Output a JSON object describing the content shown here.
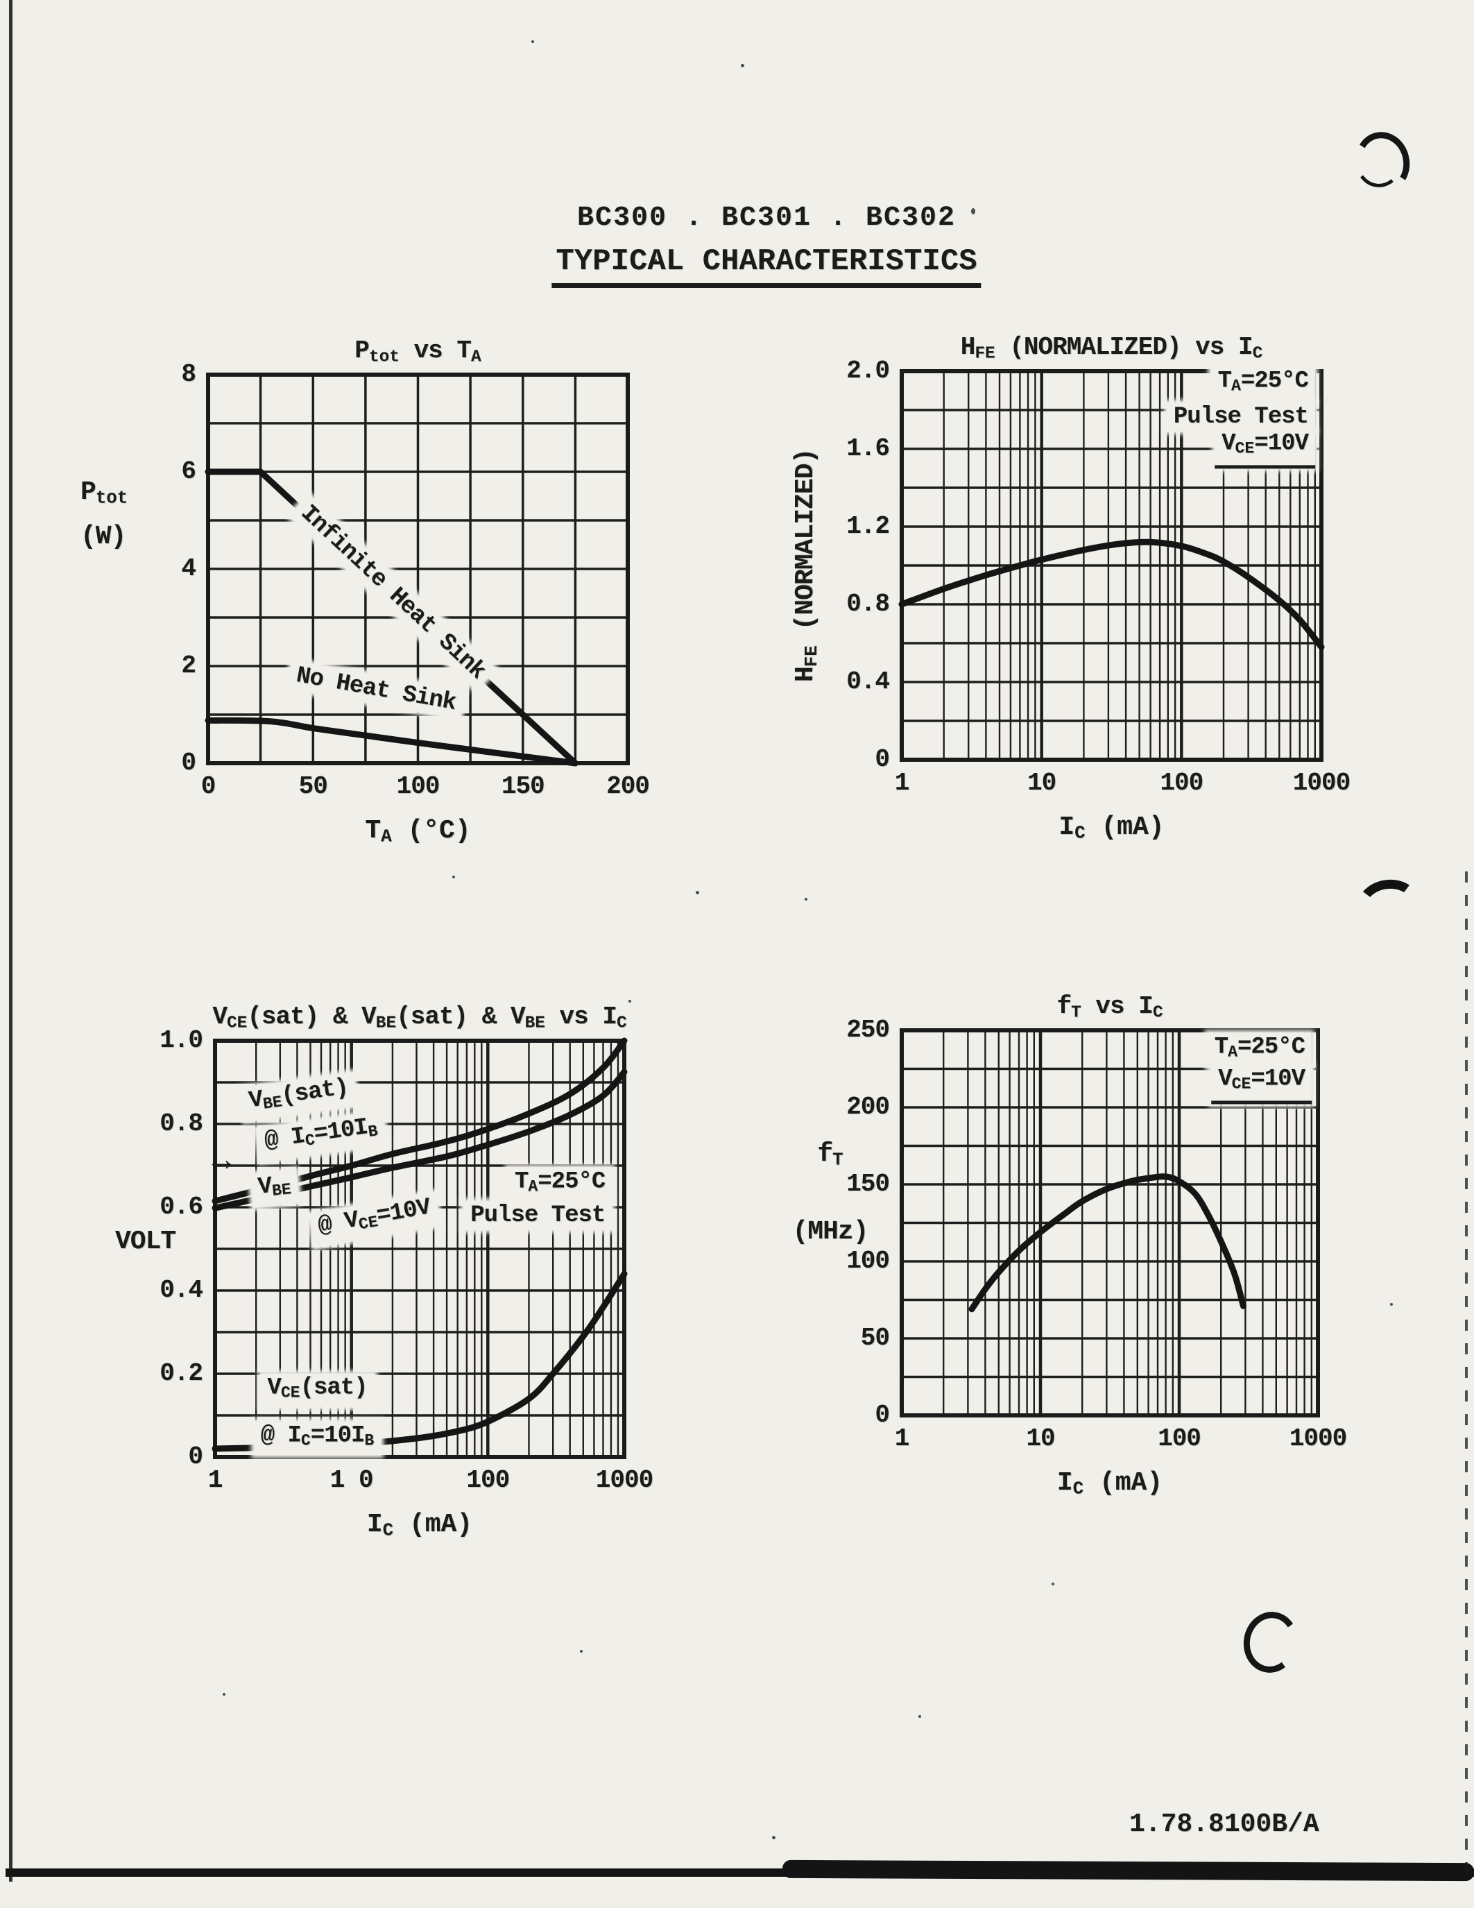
{
  "page": {
    "header_title": "BC300 . BC301 . BC302",
    "header_subtitle": "TYPICAL CHARACTERISTICS",
    "footer_code": "1.78.8100B/A",
    "ink": "#1b1b1b",
    "paper": "#f0efe9"
  },
  "chart_data": [
    {
      "id": "ptot-vs-ta",
      "type": "line",
      "title": "P_{tot} vs T_{A}",
      "xlabel": "T_{A} (°C)",
      "ylabel_lines": [
        "P_{tot}",
        "(W)"
      ],
      "x": {
        "scale": "linear",
        "min": 0,
        "max": 200,
        "grid_step": 25,
        "ticks": [
          {
            "v": 0,
            "t": "0"
          },
          {
            "v": 50,
            "t": "50"
          },
          {
            "v": 100,
            "t": "100"
          },
          {
            "v": 150,
            "t": "150"
          },
          {
            "v": 200,
            "t": "200"
          }
        ]
      },
      "y": {
        "scale": "linear",
        "min": 0,
        "max": 8,
        "grid_step": 1,
        "ticks": [
          {
            "v": 8,
            "t": "8"
          },
          {
            "v": 6,
            "t": "6"
          },
          {
            "v": 4,
            "t": "4"
          },
          {
            "v": 2,
            "t": "2"
          },
          {
            "v": 0,
            "t": "0"
          }
        ]
      },
      "series": [
        {
          "name": "Infinite Heat Sink",
          "sharp": true,
          "points": [
            [
              0,
              6
            ],
            [
              25,
              6
            ],
            [
              175,
              0
            ]
          ]
        },
        {
          "name": "No Heat Sink",
          "points": [
            [
              0,
              0.88
            ],
            [
              30,
              0.86
            ],
            [
              50,
              0.72
            ],
            [
              75,
              0.57
            ],
            [
              100,
              0.42
            ],
            [
              125,
              0.28
            ],
            [
              150,
              0.14
            ],
            [
              175,
              0
            ]
          ]
        }
      ],
      "annotations": [
        {
          "text": "Infinite Heat Sink",
          "fx": 0.44,
          "fy": 0.56,
          "rot": 43,
          "bg": true
        },
        {
          "text": "No Heat Sink",
          "fx": 0.4,
          "fy": 0.81,
          "rot": 10,
          "bg": true
        }
      ]
    },
    {
      "id": "hfe-vs-ic",
      "type": "line",
      "title": "H_{FE} (NORMALIZED) vs I_{C}",
      "xlabel": "I_{C} (mA)",
      "ylabel_rotated": "H_{FE} (NORMALIZED)",
      "x": {
        "scale": "log",
        "min": 1,
        "max": 1000,
        "ticks": [
          {
            "v": 1,
            "t": "1"
          },
          {
            "v": 10,
            "t": "10"
          },
          {
            "v": 100,
            "t": "100"
          },
          {
            "v": 1000,
            "t": "1000"
          }
        ]
      },
      "y": {
        "scale": "linear",
        "min": 0,
        "max": 2.0,
        "grid_step": 0.2,
        "ticks": [
          {
            "v": 2.0,
            "t": "2.0"
          },
          {
            "v": 1.6,
            "t": "1.6"
          },
          {
            "v": 1.2,
            "t": "1.2"
          },
          {
            "v": 0.8,
            "t": "0.8"
          },
          {
            "v": 0.4,
            "t": "0.4"
          },
          {
            "v": 0,
            "t": "0"
          }
        ]
      },
      "series": [
        {
          "name": "HFE normalized",
          "points": [
            [
              1,
              0.8
            ],
            [
              2,
              0.88
            ],
            [
              4,
              0.95
            ],
            [
              7,
              1.0
            ],
            [
              10,
              1.03
            ],
            [
              20,
              1.08
            ],
            [
              35,
              1.11
            ],
            [
              60,
              1.12
            ],
            [
              100,
              1.1
            ],
            [
              150,
              1.06
            ],
            [
              200,
              1.02
            ],
            [
              300,
              0.94
            ],
            [
              500,
              0.82
            ],
            [
              700,
              0.72
            ],
            [
              1000,
              0.58
            ]
          ]
        }
      ],
      "annotations": [
        {
          "text": "T_{A}=25°C",
          "fx": 0.985,
          "fy": 0.033,
          "align": "right",
          "bg": true
        },
        {
          "text": "Pulse Test",
          "fx": 0.985,
          "fy": 0.118,
          "align": "right",
          "bg": true
        },
        {
          "text": "V_{CE}=10V",
          "fx": 0.985,
          "fy": 0.2,
          "align": "right",
          "bg": true,
          "underline": true
        }
      ]
    },
    {
      "id": "vsat-vbe-vs-ic",
      "type": "line",
      "title": "V_{CE}(sat) & V_{BE}(sat) & V_{BE} vs I_{C}",
      "xlabel": "I_{C} (mA)",
      "ylabel_lines": [
        "VOLT"
      ],
      "x": {
        "scale": "log",
        "min": 1,
        "max": 1000,
        "ticks": [
          {
            "v": 1,
            "t": "1"
          },
          {
            "v": 10,
            "t": "1 0"
          },
          {
            "v": 100,
            "t": "100"
          },
          {
            "v": 1000,
            "t": "1000"
          }
        ]
      },
      "y": {
        "scale": "linear",
        "min": 0,
        "max": 1.0,
        "grid_step": 0.1,
        "ticks": [
          {
            "v": 1.0,
            "t": "1.0"
          },
          {
            "v": 0.8,
            "t": "0.8"
          },
          {
            "v": 0.6,
            "t": "0.6"
          },
          {
            "v": 0.4,
            "t": "0.4"
          },
          {
            "v": 0.2,
            "t": "0.2"
          },
          {
            "v": 0,
            "t": "0"
          }
        ]
      },
      "series": [
        {
          "name": "VBE(sat) @ IC=10IB",
          "points": [
            [
              1,
              0.615
            ],
            [
              2,
              0.64
            ],
            [
              5,
              0.675
            ],
            [
              10,
              0.7
            ],
            [
              20,
              0.728
            ],
            [
              50,
              0.758
            ],
            [
              100,
              0.788
            ],
            [
              200,
              0.825
            ],
            [
              400,
              0.872
            ],
            [
              700,
              0.935
            ],
            [
              1000,
              1.0
            ]
          ]
        },
        {
          "name": "VBE @ VCE=10V",
          "points": [
            [
              1,
              0.598
            ],
            [
              2,
              0.62
            ],
            [
              5,
              0.65
            ],
            [
              10,
              0.672
            ],
            [
              20,
              0.695
            ],
            [
              50,
              0.722
            ],
            [
              100,
              0.75
            ],
            [
              200,
              0.782
            ],
            [
              400,
              0.822
            ],
            [
              700,
              0.868
            ],
            [
              1000,
              0.925
            ]
          ]
        },
        {
          "name": "VCE(sat) @ IC=10IB",
          "points": [
            [
              1,
              0.02
            ],
            [
              5,
              0.025
            ],
            [
              10,
              0.03
            ],
            [
              30,
              0.045
            ],
            [
              60,
              0.062
            ],
            [
              100,
              0.085
            ],
            [
              200,
              0.14
            ],
            [
              300,
              0.2
            ],
            [
              500,
              0.29
            ],
            [
              700,
              0.36
            ],
            [
              1000,
              0.44
            ]
          ]
        }
      ],
      "annotations": [
        {
          "text": "V_{BE}(sat)",
          "fx": 0.205,
          "fy": 0.135,
          "rot": -8,
          "bg": true
        },
        {
          "text": "@ I_{C}=10I_{B}",
          "fx": 0.26,
          "fy": 0.23,
          "rot": -8,
          "bg": true
        },
        {
          "text": "→",
          "fx": 0.015,
          "fy": 0.29,
          "bg": false,
          "size": 46
        },
        {
          "text": "V_{BE}",
          "fx": 0.145,
          "fy": 0.355,
          "rot": -6,
          "bg": true
        },
        {
          "text": "@ V_{CE}=10V",
          "fx": 0.39,
          "fy": 0.43,
          "rot": -10,
          "bg": true
        },
        {
          "text": "T_{A}=25°C",
          "fx": 0.97,
          "fy": 0.345,
          "align": "right",
          "bg": true
        },
        {
          "text": "Pulse Test",
          "fx": 0.97,
          "fy": 0.42,
          "align": "right",
          "bg": true
        },
        {
          "text": "V_{CE}(sat)",
          "fx": 0.25,
          "fy": 0.84,
          "bg": true
        },
        {
          "text": "@ I_{C}=10I_{B}",
          "fx": 0.25,
          "fy": 0.955,
          "bg": true
        }
      ]
    },
    {
      "id": "ft-vs-ic",
      "type": "line",
      "title": "f_{T} vs I_{C}",
      "xlabel": "I_{C} (mA)",
      "ylabel_lines": [
        "f_{T}",
        "(MHz)"
      ],
      "x": {
        "scale": "log",
        "min": 1,
        "max": 1000,
        "ticks": [
          {
            "v": 1,
            "t": "1"
          },
          {
            "v": 10,
            "t": "10"
          },
          {
            "v": 100,
            "t": "100"
          },
          {
            "v": 1000,
            "t": "1000"
          }
        ]
      },
      "y": {
        "scale": "linear",
        "min": 0,
        "max": 250,
        "grid_step": 25,
        "ticks": [
          {
            "v": 250,
            "t": "250"
          },
          {
            "v": 200,
            "t": "200"
          },
          {
            "v": 150,
            "t": "150"
          },
          {
            "v": 100,
            "t": "100"
          },
          {
            "v": 50,
            "t": "50"
          },
          {
            "v": 0,
            "t": "0"
          }
        ]
      },
      "series": [
        {
          "name": "fT",
          "points": [
            [
              3.2,
              69
            ],
            [
              4,
              82
            ],
            [
              5,
              93
            ],
            [
              7,
              107
            ],
            [
              10,
              119
            ],
            [
              15,
              131
            ],
            [
              20,
              139
            ],
            [
              30,
              147
            ],
            [
              45,
              152
            ],
            [
              60,
              154
            ],
            [
              80,
              155
            ],
            [
              100,
              152
            ],
            [
              130,
              144
            ],
            [
              160,
              131
            ],
            [
              200,
              113
            ],
            [
              250,
              92
            ],
            [
              290,
              71
            ]
          ]
        }
      ],
      "annotations": [
        {
          "text": "T_{A}=25°C",
          "fx": 0.985,
          "fy": 0.05,
          "align": "right",
          "bg": true
        },
        {
          "text": "V_{CE}=10V",
          "fx": 0.985,
          "fy": 0.14,
          "align": "right",
          "bg": true,
          "underline": true
        }
      ]
    }
  ]
}
